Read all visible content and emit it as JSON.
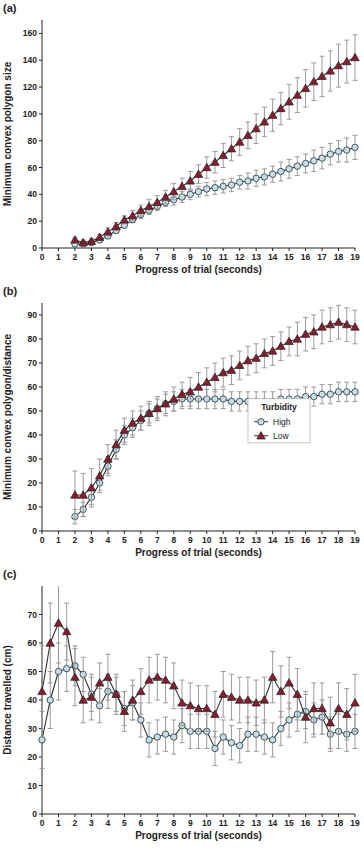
{
  "chart_data": [
    {
      "type": "line",
      "title": "(a)",
      "x_label": "Progress of trial (seconds)",
      "y_label": "Minimum convex polygon size",
      "x": [
        2,
        2.5,
        3,
        3.5,
        4,
        4.5,
        5,
        5.5,
        6,
        6.5,
        7,
        7.5,
        8,
        8.5,
        9,
        9.5,
        10,
        10.5,
        11,
        11.5,
        12,
        12.5,
        13,
        13.5,
        14,
        14.5,
        15,
        15.5,
        16,
        16.5,
        17,
        17.5,
        18,
        18.5,
        19
      ],
      "series": [
        {
          "name": "High",
          "color": "#c9dde3",
          "marker": "circle",
          "values": [
            3,
            3,
            4,
            6,
            9,
            13,
            17,
            21,
            25,
            28,
            31,
            34,
            36,
            38,
            40,
            42,
            44,
            45,
            46,
            47,
            49,
            50,
            52,
            53,
            55,
            57,
            59,
            61,
            63,
            65,
            67,
            70,
            72,
            73,
            75
          ],
          "errors": [
            1,
            1,
            1,
            1,
            2,
            2,
            2,
            2,
            3,
            3,
            3,
            3,
            4,
            4,
            4,
            4,
            5,
            5,
            5,
            5,
            5,
            6,
            6,
            6,
            6,
            7,
            7,
            7,
            7,
            8,
            8,
            8,
            8,
            9,
            9
          ]
        },
        {
          "name": "Low",
          "color": "#8b1a2e",
          "marker": "triangle",
          "values": [
            6,
            4,
            5,
            8,
            12,
            16,
            21,
            24,
            28,
            31,
            34,
            38,
            42,
            46,
            50,
            55,
            60,
            64,
            69,
            74,
            79,
            84,
            89,
            94,
            99,
            104,
            109,
            114,
            119,
            124,
            128,
            132,
            136,
            139,
            142
          ],
          "errors": [
            2,
            2,
            2,
            2,
            3,
            3,
            3,
            4,
            4,
            5,
            5,
            5,
            6,
            6,
            7,
            7,
            8,
            8,
            9,
            9,
            10,
            10,
            11,
            11,
            12,
            12,
            13,
            13,
            14,
            14,
            15,
            15,
            16,
            16,
            17
          ]
        }
      ],
      "xlim": [
        0,
        19
      ],
      "xticks": [
        0,
        1,
        2,
        3,
        4,
        5,
        6,
        7,
        8,
        9,
        10,
        11,
        12,
        13,
        14,
        15,
        16,
        17,
        18,
        19
      ],
      "ylim": [
        0,
        170
      ],
      "yticks": [
        0,
        20,
        40,
        60,
        80,
        100,
        120,
        140,
        160
      ]
    },
    {
      "type": "line",
      "title": "(b)",
      "x_label": "Progress of trial (seconds)",
      "y_label": "Minimum convex polygon/distance",
      "x": [
        2,
        2.5,
        3,
        3.5,
        4,
        4.5,
        5,
        5.5,
        6,
        6.5,
        7,
        7.5,
        8,
        8.5,
        9,
        9.5,
        10,
        10.5,
        11,
        11.5,
        12,
        12.5,
        13,
        13.5,
        14,
        14.5,
        15,
        15.5,
        16,
        16.5,
        17,
        17.5,
        18,
        18.5,
        19
      ],
      "series": [
        {
          "name": "High",
          "color": "#c9dde3",
          "marker": "circle",
          "values": [
            6,
            9,
            14,
            20,
            27,
            34,
            40,
            43,
            46,
            49,
            51,
            53,
            54,
            55,
            55,
            55,
            55,
            55,
            55,
            54,
            54,
            54,
            54,
            54,
            54,
            55,
            55,
            55,
            56,
            56,
            57,
            57,
            58,
            58,
            58
          ],
          "errors": [
            3,
            3,
            3,
            3,
            4,
            4,
            4,
            4,
            4,
            4,
            4,
            4,
            4,
            4,
            4,
            4,
            4,
            4,
            4,
            4,
            4,
            4,
            4,
            4,
            4,
            4,
            4,
            4,
            4,
            4,
            4,
            4,
            4,
            4,
            4
          ]
        },
        {
          "name": "Low",
          "color": "#8b1a2e",
          "marker": "triangle",
          "values": [
            15,
            15,
            18,
            23,
            30,
            36,
            42,
            45,
            47,
            49,
            51,
            53,
            55,
            57,
            58,
            60,
            62,
            64,
            66,
            67,
            69,
            71,
            72,
            74,
            75,
            77,
            79,
            80,
            82,
            83,
            85,
            86,
            87,
            86,
            85
          ],
          "errors": [
            10,
            9,
            8,
            7,
            6,
            6,
            5,
            5,
            5,
            5,
            5,
            5,
            5,
            5,
            6,
            6,
            6,
            6,
            6,
            6,
            6,
            6,
            6,
            6,
            6,
            6,
            6,
            7,
            7,
            7,
            7,
            7,
            7,
            7,
            7
          ]
        }
      ],
      "xlim": [
        0,
        19
      ],
      "xticks": [
        0,
        1,
        2,
        3,
        4,
        5,
        6,
        7,
        8,
        9,
        10,
        11,
        12,
        13,
        14,
        15,
        16,
        17,
        18,
        19
      ],
      "ylim": [
        0,
        95
      ],
      "yticks": [
        0,
        10,
        20,
        30,
        40,
        50,
        60,
        70,
        80,
        90
      ],
      "legend": "right",
      "legend_title": "Turbidity"
    },
    {
      "type": "line",
      "title": "(c)",
      "x_label": "Progress of trial (seconds)",
      "y_label": "Distance travelled (cm)",
      "x": [
        0,
        0.5,
        1,
        1.5,
        2,
        2.5,
        3,
        3.5,
        4,
        4.5,
        5,
        5.5,
        6,
        6.5,
        7,
        7.5,
        8,
        8.5,
        9,
        9.5,
        10,
        10.5,
        11,
        11.5,
        12,
        12.5,
        13,
        13.5,
        14,
        14.5,
        15,
        15.5,
        16,
        16.5,
        17,
        17.5,
        18,
        18.5,
        19
      ],
      "series": [
        {
          "name": "High",
          "color": "#c9dde3",
          "marker": "circle",
          "values": [
            26,
            40,
            50,
            51,
            52,
            49,
            42,
            38,
            43,
            42,
            37,
            39,
            33,
            26,
            27,
            28,
            27,
            31,
            29,
            29,
            29,
            23,
            27,
            25,
            24,
            28,
            28,
            27,
            26,
            30,
            33,
            35,
            36,
            33,
            34,
            28,
            29,
            28,
            29
          ],
          "errors": [
            10,
            10,
            10,
            8,
            7,
            6,
            6,
            6,
            6,
            6,
            6,
            6,
            6,
            6,
            6,
            6,
            6,
            6,
            6,
            6,
            6,
            6,
            6,
            6,
            6,
            6,
            6,
            6,
            6,
            6,
            6,
            6,
            6,
            6,
            6,
            6,
            6,
            6,
            6
          ]
        },
        {
          "name": "Low",
          "color": "#8b1a2e",
          "marker": "triangle",
          "values": [
            43,
            60,
            67,
            64,
            48,
            40,
            41,
            46,
            48,
            42,
            36,
            40,
            43,
            47,
            48,
            47,
            45,
            39,
            38,
            37,
            37,
            35,
            42,
            41,
            40,
            40,
            39,
            40,
            48,
            43,
            46,
            42,
            34,
            37,
            37,
            32,
            37,
            35,
            39
          ],
          "errors": [
            16,
            14,
            14,
            10,
            10,
            8,
            8,
            7,
            8,
            7,
            7,
            7,
            8,
            8,
            8,
            8,
            8,
            8,
            8,
            8,
            8,
            8,
            8,
            8,
            8,
            8,
            8,
            8,
            9,
            9,
            9,
            9,
            9,
            9,
            9,
            9,
            9,
            9,
            10
          ]
        }
      ],
      "xlim": [
        0,
        19
      ],
      "xticks": [
        0,
        1,
        2,
        3,
        4,
        5,
        6,
        7,
        8,
        9,
        10,
        11,
        12,
        13,
        14,
        15,
        16,
        17,
        18,
        19
      ],
      "ylim": [
        0,
        80
      ],
      "yticks": [
        0,
        10,
        20,
        30,
        40,
        50,
        60,
        70
      ]
    }
  ]
}
